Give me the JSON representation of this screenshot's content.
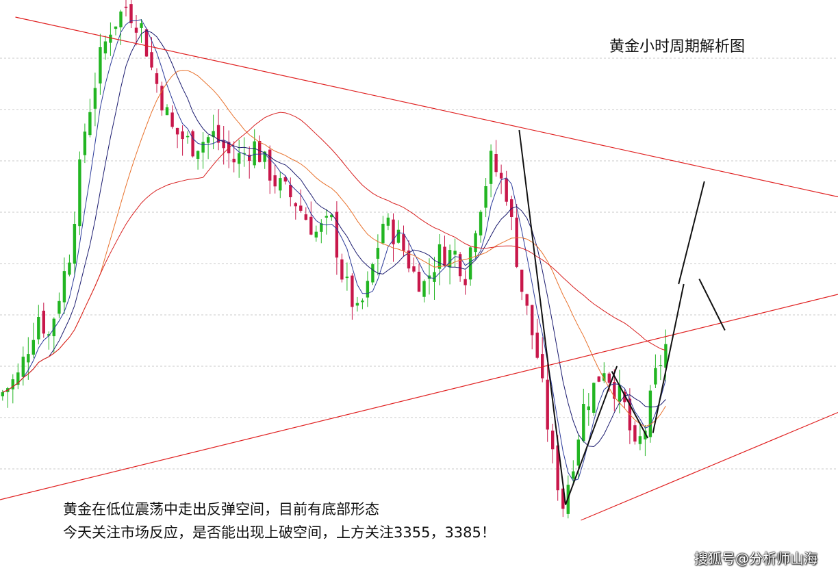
{
  "chart_data": {
    "type": "candlestick",
    "title": "黄金小时周期解析图",
    "annotations": [
      "黄金在低位震荡中走出反弹空间，目前有底部形态",
      "今天关注市场反应，是否能出现上破空间，上方关注3355，3385！"
    ],
    "ylim": [
      0,
      100
    ],
    "grid": true,
    "grid_y": [
      10,
      20,
      30,
      40,
      50,
      60,
      70,
      80,
      90
    ],
    "anchors": [
      [
        0,
        24
      ],
      [
        4,
        28
      ],
      [
        8,
        40
      ],
      [
        10,
        36
      ],
      [
        14,
        52
      ],
      [
        17,
        76
      ],
      [
        20,
        90
      ],
      [
        22,
        96
      ],
      [
        25,
        100
      ],
      [
        28,
        96
      ],
      [
        30,
        88
      ],
      [
        34,
        76
      ],
      [
        38,
        73
      ],
      [
        42,
        75
      ],
      [
        46,
        70
      ],
      [
        50,
        73
      ],
      [
        54,
        66
      ],
      [
        58,
        62
      ],
      [
        62,
        56
      ],
      [
        65,
        58
      ],
      [
        67,
        48
      ],
      [
        70,
        40
      ],
      [
        72,
        45
      ],
      [
        75,
        58
      ],
      [
        78,
        55
      ],
      [
        81,
        48
      ],
      [
        83,
        46
      ],
      [
        86,
        52
      ],
      [
        89,
        52
      ],
      [
        91,
        48
      ],
      [
        93,
        58
      ],
      [
        96,
        70
      ],
      [
        99,
        64
      ],
      [
        102,
        45
      ],
      [
        105,
        32
      ],
      [
        108,
        12
      ],
      [
        110,
        3
      ],
      [
        112,
        12
      ],
      [
        114,
        22
      ],
      [
        116,
        26
      ],
      [
        118,
        30
      ],
      [
        120,
        26
      ],
      [
        122,
        22
      ],
      [
        124,
        13
      ],
      [
        126,
        18
      ],
      [
        128,
        28
      ],
      [
        130,
        34
      ]
    ],
    "trendlines": [
      {
        "color": "#e02020",
        "points": [
          [
            0,
            4
          ],
          [
            163,
            44
          ]
        ]
      },
      {
        "color": "#e02020",
        "points": [
          [
            113,
            0
          ],
          [
            163,
            21
          ]
        ]
      },
      {
        "color": "#e02020",
        "points": [
          [
            3,
            98
          ],
          [
            163,
            63
          ]
        ]
      }
    ],
    "pattern_lines": {
      "color": "#111111",
      "lines": [
        [
          [
            101,
            76
          ],
          [
            110,
            3
          ]
        ],
        [
          [
            110,
            3
          ],
          [
            120,
            30
          ]
        ],
        [
          [
            119,
            29
          ],
          [
            126,
            16
          ]
        ],
        [
          [
            127,
            17
          ],
          [
            133,
            46
          ]
        ],
        [
          [
            132,
            46
          ],
          [
            137,
            66
          ]
        ],
        [
          [
            136,
            47
          ],
          [
            141,
            37
          ]
        ]
      ]
    }
  },
  "watermark": "搜狐号@分析师山海"
}
